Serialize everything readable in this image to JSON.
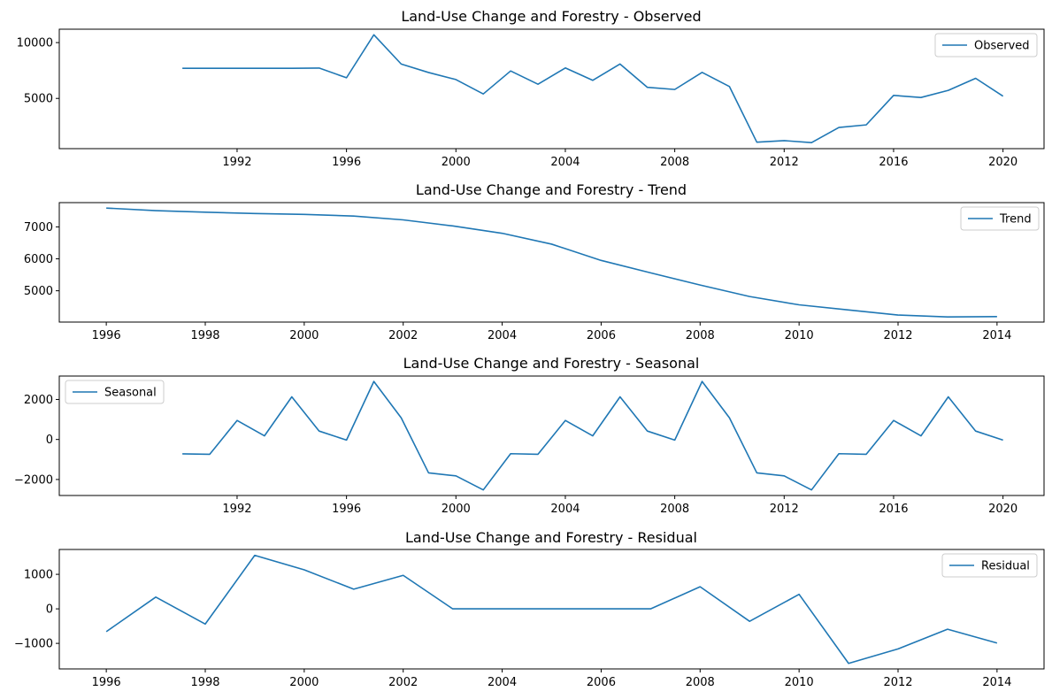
{
  "colors": {
    "line": "#1f77b4",
    "axis": "#000000",
    "legend_border": "#cccccc"
  },
  "chart_data": [
    {
      "type": "line",
      "title": "Land-Use Change and Forestry  - Observed",
      "x": [
        1990,
        1991,
        1992,
        1993,
        1994,
        1995,
        1996,
        1997,
        1998,
        1999,
        2000,
        2001,
        2002,
        2003,
        2004,
        2005,
        2006,
        2007,
        2008,
        2009,
        2010,
        2011,
        2012,
        2013,
        2014,
        2015,
        2016,
        2017,
        2018,
        2019,
        2020
      ],
      "series": [
        {
          "name": "Observed",
          "values": [
            7700,
            7700,
            7700,
            7700,
            7700,
            7720,
            6850,
            10700,
            8080,
            7320,
            6690,
            5400,
            7460,
            6270,
            7730,
            6620,
            8080,
            5990,
            5800,
            7330,
            6060,
            1080,
            1220,
            1040,
            2400,
            2630,
            5270,
            5080,
            5720,
            6800,
            5200
          ]
        }
      ],
      "xlim": [
        1985.5,
        2021.5
      ],
      "ylim": [
        500,
        11200
      ],
      "xticks": [
        1992,
        1996,
        2000,
        2004,
        2008,
        2012,
        2016,
        2020
      ],
      "xtick_labels": [
        "1992",
        "1996",
        "2000",
        "2004",
        "2008",
        "2012",
        "2016",
        "2020"
      ],
      "yticks": [
        5000,
        10000
      ],
      "ytick_labels": [
        "5000",
        "10000"
      ],
      "legend": "upper-right",
      "grid": false
    },
    {
      "type": "line",
      "title": "Land-Use Change and Forestry  - Trend",
      "x": [
        1996,
        1997,
        1998,
        1999,
        2000,
        2001,
        2002,
        2003,
        2004,
        2005,
        2006,
        2007,
        2008,
        2009,
        2010,
        2011,
        2012,
        2013,
        2014
      ],
      "series": [
        {
          "name": "Trend",
          "values": [
            7590,
            7510,
            7460,
            7420,
            7390,
            7340,
            7220,
            7030,
            6800,
            6460,
            5950,
            5560,
            5180,
            4820,
            4560,
            4400,
            4240,
            4180,
            4190
          ]
        }
      ],
      "xlim": [
        1995.05,
        2014.95
      ],
      "ylim": [
        4020,
        7760
      ],
      "xticks": [
        1996,
        1998,
        2000,
        2002,
        2004,
        2006,
        2008,
        2010,
        2012,
        2014
      ],
      "xtick_labels": [
        "1996",
        "1998",
        "2000",
        "2002",
        "2004",
        "2006",
        "2008",
        "2010",
        "2012",
        "2014"
      ],
      "yticks": [
        5000,
        6000,
        7000
      ],
      "ytick_labels": [
        "5000",
        "6000",
        "7000"
      ],
      "legend": "upper-right",
      "grid": false
    },
    {
      "type": "line",
      "title": "Land-Use Change and Forestry  - Seasonal",
      "x": [
        1990,
        1991,
        1992,
        1993,
        1994,
        1995,
        1996,
        1997,
        1998,
        1999,
        2000,
        2001,
        2002,
        2003,
        2004,
        2005,
        2006,
        2007,
        2008,
        2009,
        2010,
        2011,
        2012,
        2013,
        2014,
        2015,
        2016,
        2017,
        2018,
        2019,
        2020
      ],
      "series": [
        {
          "name": "Seasonal",
          "values": [
            -720,
            -740,
            950,
            180,
            2130,
            420,
            -30,
            2900,
            1080,
            -1670,
            -1820,
            -2520,
            -710,
            -740,
            950,
            180,
            2130,
            420,
            -30,
            2900,
            1080,
            -1670,
            -1820,
            -2520,
            -710,
            -740,
            950,
            180,
            2130,
            420,
            -30
          ]
        }
      ],
      "xlim": [
        1985.5,
        2021.5
      ],
      "ylim": [
        -2800,
        3170
      ],
      "xticks": [
        1992,
        1996,
        2000,
        2004,
        2008,
        2012,
        2016,
        2020
      ],
      "xtick_labels": [
        "1992",
        "1996",
        "2000",
        "2004",
        "2008",
        "2012",
        "2016",
        "2020"
      ],
      "yticks": [
        -2000,
        0,
        2000
      ],
      "ytick_labels": [
        "−2000",
        "0",
        "2000"
      ],
      "legend": "upper-left",
      "grid": false
    },
    {
      "type": "line",
      "title": "Land-Use Change and Forestry  - Residual",
      "x": [
        1996,
        1997,
        1998,
        1999,
        2000,
        2001,
        2002,
        2003,
        2004,
        2005,
        2006,
        2007,
        2008,
        2009,
        2010,
        2011,
        2012,
        2013,
        2014
      ],
      "series": [
        {
          "name": "Residual",
          "values": [
            -660,
            340,
            -440,
            1550,
            1130,
            570,
            970,
            0,
            0,
            0,
            0,
            0,
            640,
            -360,
            420,
            -1580,
            -1160,
            -590,
            -990
          ]
        }
      ],
      "xlim": [
        1995.05,
        2014.95
      ],
      "ylim": [
        -1740,
        1720
      ],
      "xticks": [
        1996,
        1998,
        2000,
        2002,
        2004,
        2006,
        2008,
        2010,
        2012,
        2014
      ],
      "xtick_labels": [
        "1996",
        "1998",
        "2000",
        "2002",
        "2004",
        "2006",
        "2008",
        "2010",
        "2012",
        "2014"
      ],
      "yticks": [
        -1000,
        0,
        1000
      ],
      "ytick_labels": [
        "−1000",
        "0",
        "1000"
      ],
      "legend": "upper-right",
      "grid": false
    }
  ]
}
